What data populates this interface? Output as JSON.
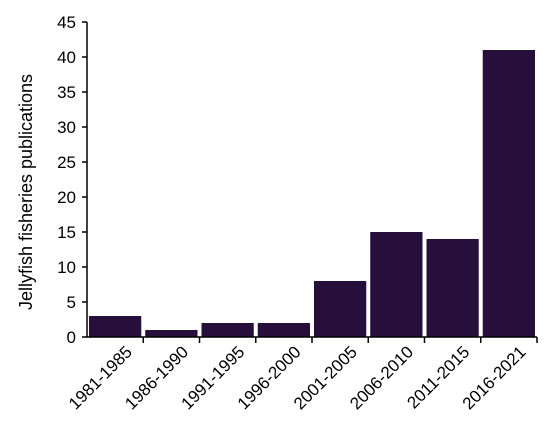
{
  "chart_data": {
    "type": "bar",
    "categories": [
      "1981-1985",
      "1986-1990",
      "1991-1995",
      "1996-2000",
      "2001-2005",
      "2006-2010",
      "2011-2015",
      "2016-2021"
    ],
    "values": [
      3,
      1,
      2,
      2,
      8,
      15,
      14,
      41
    ],
    "ylabel": "Jellyfish fisheries publications",
    "xlabel": "",
    "ylim": [
      0,
      45
    ],
    "yticks": [
      0,
      5,
      10,
      15,
      20,
      25,
      30,
      35,
      40,
      45
    ],
    "grid": false,
    "legend": "none",
    "bar_color": "#260f3b",
    "axis_color": "#000000"
  }
}
